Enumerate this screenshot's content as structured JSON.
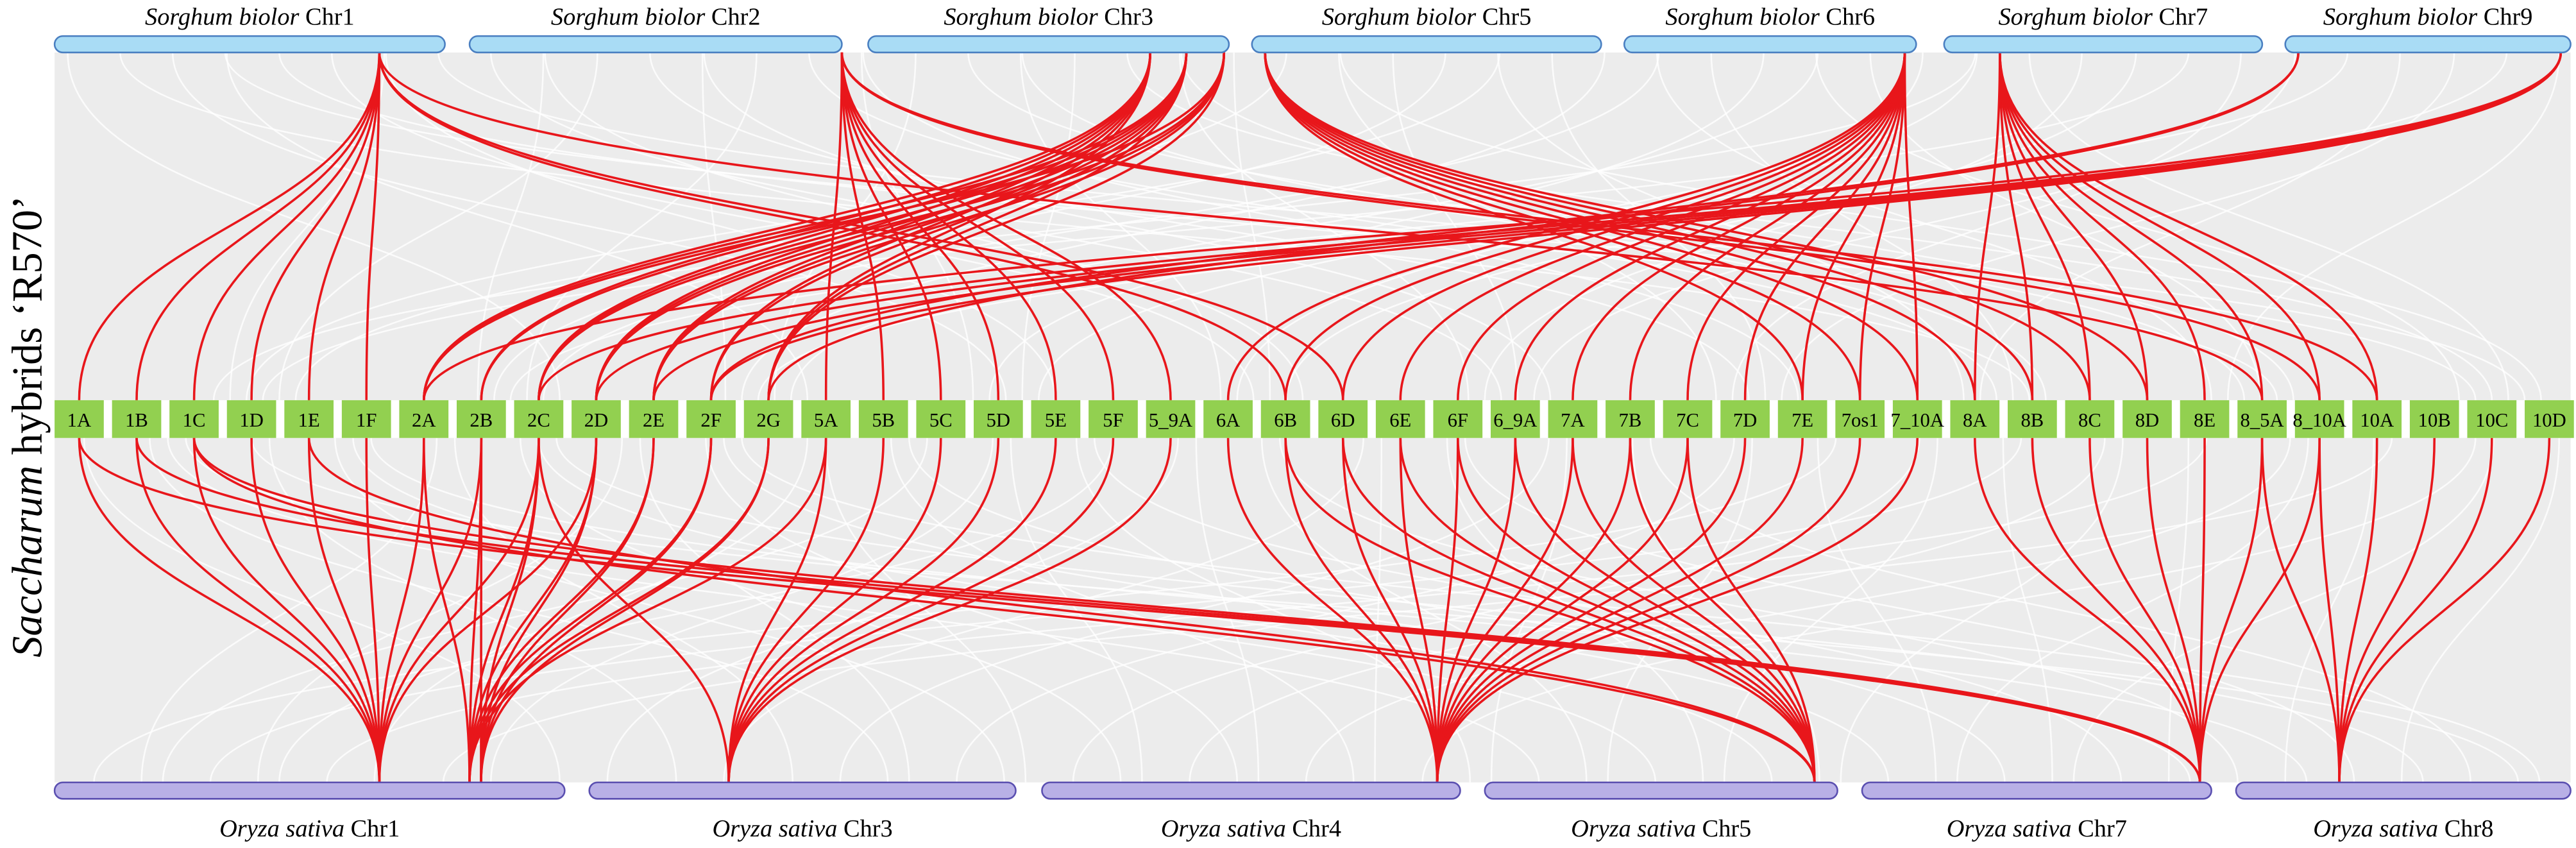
{
  "side_label": {
    "italic": "Saccharum",
    "rest": " hybrids ‘R570’"
  },
  "top": [
    {
      "genus": "Sorghum biolor",
      "chr": "Chr1"
    },
    {
      "genus": "Sorghum biolor",
      "chr": "Chr2"
    },
    {
      "genus": "Sorghum biolor",
      "chr": "Chr3"
    },
    {
      "genus": "Sorghum biolor",
      "chr": "Chr5"
    },
    {
      "genus": "Sorghum biolor",
      "chr": "Chr6"
    },
    {
      "genus": "Sorghum biolor",
      "chr": "Chr7"
    },
    {
      "genus": "Sorghum biolor",
      "chr": "Chr9"
    }
  ],
  "middle": [
    "1A",
    "1B",
    "1C",
    "1D",
    "1E",
    "1F",
    "2A",
    "2B",
    "2C",
    "2D",
    "2E",
    "2F",
    "2G",
    "5A",
    "5B",
    "5C",
    "5D",
    "5E",
    "5F",
    "5_9A",
    "6A",
    "6B",
    "6D",
    "6E",
    "6F",
    "6_9A",
    "7A",
    "7B",
    "7C",
    "7D",
    "7E",
    "7os1",
    "7_10A",
    "8A",
    "8B",
    "8C",
    "8D",
    "8E",
    "8_5A",
    "8_10A",
    "10A",
    "10B",
    "10C",
    "10D"
  ],
  "bottom": [
    {
      "genus": "Oryza sativa",
      "chr": "Chr1"
    },
    {
      "genus": "Oryza sativa",
      "chr": "Chr3"
    },
    {
      "genus": "Oryza sativa",
      "chr": "Chr4"
    },
    {
      "genus": "Oryza sativa",
      "chr": "Chr5"
    },
    {
      "genus": "Oryza sativa",
      "chr": "Chr7"
    },
    {
      "genus": "Oryza sativa",
      "chr": "Chr8"
    }
  ]
}
